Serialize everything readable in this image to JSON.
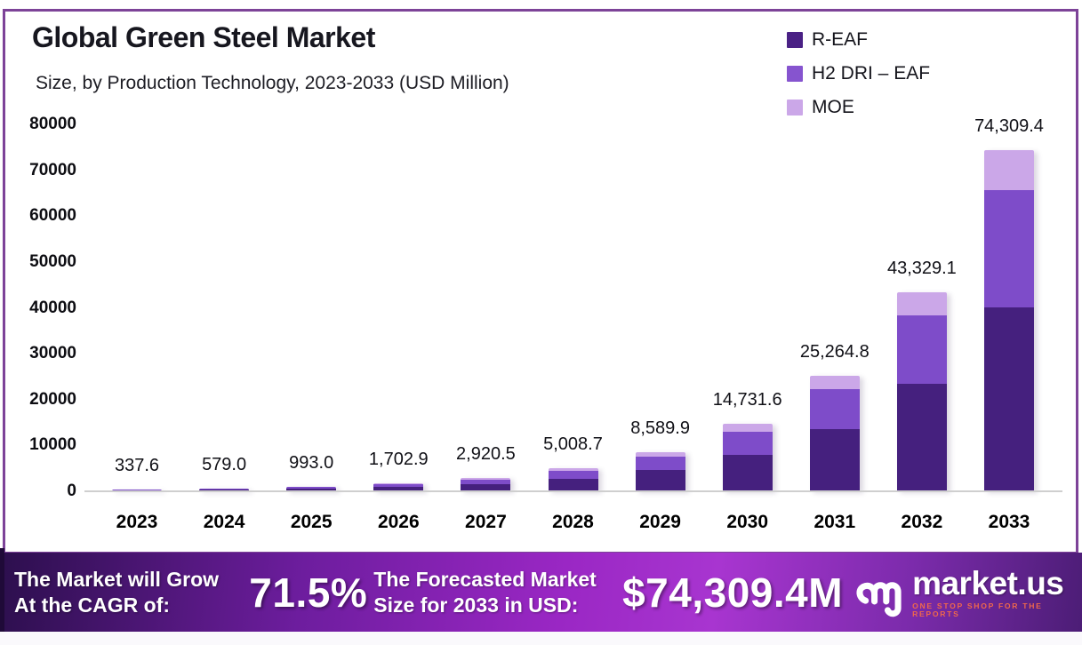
{
  "title": "Global Green Steel Market",
  "subtitle": "Size, by Production Technology, 2023-2033 (USD Million)",
  "legend": [
    {
      "label": "R-EAF",
      "color": "#4a2185"
    },
    {
      "label": "H2 DRI – EAF",
      "color": "#8654cf"
    },
    {
      "label": "MOE",
      "color": "#cba7e8"
    }
  ],
  "chart_data": {
    "type": "bar",
    "stacked": true,
    "title": "Global Green Steel Market Size, by Production Technology, 2023-2033 (USD Million)",
    "categories": [
      "2023",
      "2024",
      "2025",
      "2026",
      "2027",
      "2028",
      "2029",
      "2030",
      "2031",
      "2032",
      "2033"
    ],
    "series": [
      {
        "name": "R-EAF",
        "color": "#45207e",
        "values": [
          182.3,
          312.7,
          536.2,
          919.6,
          1577.1,
          2704.7,
          4638.5,
          7955.1,
          13643.0,
          23397.7,
          40127.1
        ]
      },
      {
        "name": "H2 DRI – EAF",
        "color": "#7e4cc9",
        "values": [
          116.5,
          199.8,
          342.6,
          587.5,
          1007.6,
          1728.0,
          2963.5,
          5082.4,
          8716.4,
          14948.5,
          25636.7
        ]
      },
      {
        "name": "MOE",
        "color": "#cba7e8",
        "values": [
          38.8,
          66.5,
          114.2,
          195.8,
          335.8,
          576.0,
          987.9,
          1694.1,
          2905.4,
          4982.9,
          8545.6
        ]
      }
    ],
    "totals": [
      337.6,
      579.0,
      993.0,
      1702.9,
      2920.5,
      5008.7,
      8589.9,
      14731.6,
      25264.8,
      43329.1,
      74309.4
    ],
    "total_labels": [
      "337.6",
      "579.0",
      "993.0",
      "1,702.9",
      "2,920.5",
      "5,008.7",
      "8,589.9",
      "14,731.6",
      "25,264.8",
      "43,329.1",
      "74,309.4"
    ],
    "ylabel": "",
    "xlabel": "",
    "ylim": [
      0,
      80000
    ],
    "yticks": [
      0,
      10000,
      20000,
      30000,
      40000,
      50000,
      60000,
      70000,
      80000
    ],
    "ytick_labels": [
      "0",
      "10000",
      "20000",
      "30000",
      "40000",
      "50000",
      "60000",
      "70000",
      "80000"
    ],
    "grid": false,
    "legend_position": "top-right"
  },
  "banner": {
    "cagr_label_line1": "The Market will Grow",
    "cagr_label_line2": "At the CAGR of:",
    "cagr_value": "71.5%",
    "forecast_label_line1": "The Forecasted Market",
    "forecast_label_line2": "Size for 2033 in USD:",
    "forecast_value": "$74,309.4M",
    "brand": "market.us",
    "brand_tagline": "ONE STOP SHOP FOR THE REPORTS"
  },
  "colors": {
    "frame_border": "#7d4398",
    "r_eaf": "#45207e",
    "h2_dri_eaf": "#7e4cc9",
    "moe": "#cba7e8",
    "banner_bright": "#a835d0",
    "banner_dark": "#2c0f4d",
    "tagline": "#f0684b",
    "axis_line": "#cfcfcf"
  }
}
